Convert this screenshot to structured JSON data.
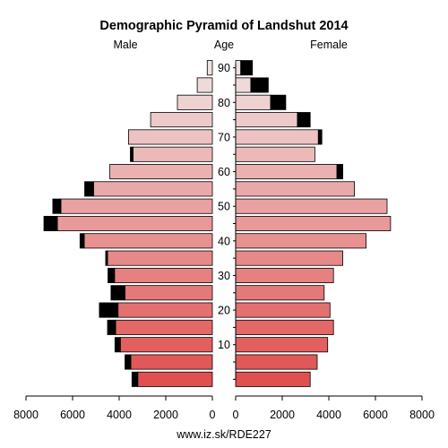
{
  "chart_data": {
    "type": "bar",
    "title": "Demographic Pyramid of Landshut 2014",
    "left_label": "Male",
    "center_label": "Age",
    "right_label": "Female",
    "footer": "www.iz.sk/RDE227",
    "x_ticks_left": [
      "8000",
      "6000",
      "4000",
      "2000",
      "0"
    ],
    "x_ticks_right": [
      "0",
      "2000",
      "4000",
      "6000",
      "8000"
    ],
    "xlim": [
      0,
      8000
    ],
    "age_ticks": [
      "10",
      "20",
      "30",
      "40",
      "50",
      "60",
      "70",
      "80",
      "90"
    ],
    "age_groups": [
      "0-4",
      "5-9",
      "10-14",
      "15-19",
      "20-24",
      "25-29",
      "30-34",
      "35-39",
      "40-44",
      "45-49",
      "50-54",
      "55-59",
      "60-64",
      "65-69",
      "70-74",
      "75-79",
      "80-84",
      "85-89",
      "90+"
    ],
    "series": [
      {
        "name": "Male",
        "values": [
          3200,
          3500,
          3950,
          4150,
          4050,
          3750,
          4200,
          4500,
          5500,
          6650,
          6500,
          5100,
          4400,
          3400,
          3600,
          2650,
          1500,
          650,
          220
        ]
      },
      {
        "name": "Male",
        "values": [
          250,
          250,
          230,
          350,
          800,
          600,
          280,
          80,
          180,
          580,
          350,
          380,
          0,
          120,
          0,
          0,
          0,
          0,
          0
        ]
      },
      {
        "name": "Female",
        "values": [
          3200,
          3500,
          3950,
          4200,
          4050,
          3800,
          4200,
          4600,
          5600,
          6650,
          6500,
          5100,
          4350,
          3400,
          3550,
          2650,
          1500,
          650,
          220
        ]
      },
      {
        "name": "Female",
        "values": [
          0,
          0,
          0,
          0,
          0,
          0,
          0,
          0,
          0,
          0,
          0,
          0,
          250,
          0,
          150,
          550,
          650,
          750,
          500
        ]
      }
    ],
    "colors": {
      "young": "#e05050",
      "old": "#f0e2e2",
      "surplus": "#000000"
    }
  },
  "footer_text": "www.iz.sk/RDE227"
}
